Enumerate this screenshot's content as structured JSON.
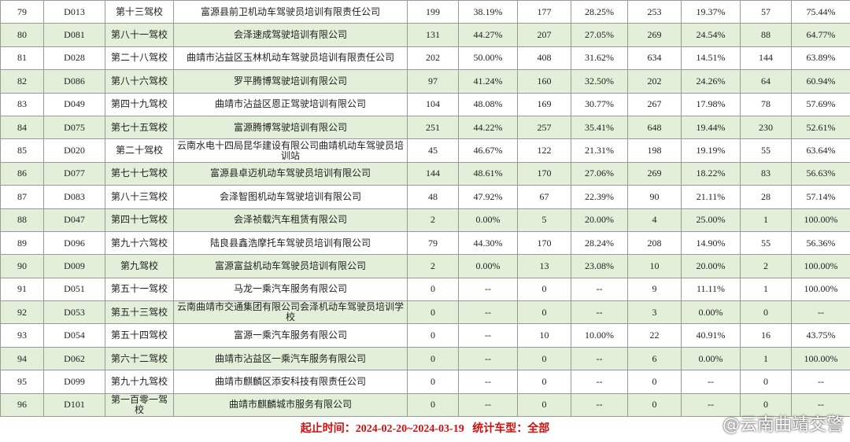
{
  "table": {
    "rows": [
      [
        "79",
        "D013",
        "第十三驾校",
        "富源县前卫机动车驾驶员培训有限责任公司",
        "199",
        "38.19%",
        "177",
        "28.25%",
        "253",
        "19.37%",
        "57",
        "75.44%"
      ],
      [
        "80",
        "D081",
        "第八十一驾校",
        "会泽速成驾驶培训有限公司",
        "131",
        "44.27%",
        "207",
        "27.05%",
        "269",
        "24.54%",
        "88",
        "64.77%"
      ],
      [
        "81",
        "D028",
        "第二十八驾校",
        "曲靖市沾益区玉林机动车驾驶员培训有限责任公司",
        "202",
        "50.00%",
        "408",
        "31.62%",
        "634",
        "14.51%",
        "144",
        "63.89%"
      ],
      [
        "82",
        "D086",
        "第八十六驾校",
        "罗平腾博驾驶培训有限公司",
        "97",
        "41.24%",
        "160",
        "32.50%",
        "202",
        "24.26%",
        "64",
        "60.94%"
      ],
      [
        "83",
        "D049",
        "第四十九驾校",
        "曲靖市沾益区恩正驾驶培训有限公司",
        "104",
        "48.08%",
        "169",
        "30.77%",
        "267",
        "17.98%",
        "78",
        "57.69%"
      ],
      [
        "84",
        "D075",
        "第七十五驾校",
        "富源腾博驾驶培训有限公司",
        "251",
        "44.22%",
        "257",
        "35.41%",
        "648",
        "19.44%",
        "230",
        "52.61%"
      ],
      [
        "85",
        "D020",
        "第二十驾校",
        "云南水电十四局昆华建设有限公司曲靖机动车驾驶员培训站",
        "45",
        "46.67%",
        "122",
        "21.31%",
        "198",
        "19.19%",
        "55",
        "63.64%"
      ],
      [
        "86",
        "D077",
        "第七十七驾校",
        "富源县卓迈机动车驾驶员培训有限公司",
        "144",
        "48.61%",
        "170",
        "27.06%",
        "269",
        "18.22%",
        "83",
        "56.63%"
      ],
      [
        "87",
        "D083",
        "第八十三驾校",
        "会泽智图机动车驾驶培训有限公司",
        "48",
        "47.92%",
        "67",
        "22.39%",
        "90",
        "21.11%",
        "28",
        "57.14%"
      ],
      [
        "88",
        "D047",
        "第四十七驾校",
        "会泽祯载汽车租赁有限公司",
        "2",
        "0.00%",
        "5",
        "20.00%",
        "4",
        "25.00%",
        "1",
        "100.00%"
      ],
      [
        "89",
        "D096",
        "第九十六驾校",
        "陆良县鑫浩摩托车驾驶员培训有限公司",
        "79",
        "44.30%",
        "170",
        "28.24%",
        "208",
        "14.90%",
        "55",
        "56.36%"
      ],
      [
        "90",
        "D009",
        "第九驾校",
        "富源富益机动车驾驶员培训有限公司",
        "2",
        "0.00%",
        "13",
        "23.08%",
        "10",
        "20.00%",
        "2",
        "100.00%"
      ],
      [
        "91",
        "D051",
        "第五十一驾校",
        "马龙一乘汽车服务有限公司",
        "0",
        "--",
        "0",
        "--",
        "9",
        "11.11%",
        "1",
        "100.00%"
      ],
      [
        "92",
        "D053",
        "第五十三驾校",
        "云南曲靖市交通集团有限公司会泽机动车驾驶员培训学校",
        "0",
        "--",
        "0",
        "--",
        "3",
        "0.00%",
        "0",
        "--"
      ],
      [
        "93",
        "D054",
        "第五十四驾校",
        "富源一乘汽车服务有限公司",
        "0",
        "--",
        "10",
        "10.00%",
        "22",
        "40.91%",
        "16",
        "43.75%"
      ],
      [
        "94",
        "D062",
        "第六十二驾校",
        "曲靖市沾益区一乘汽车服务有限公司",
        "0",
        "--",
        "0",
        "--",
        "6",
        "0.00%",
        "1",
        "100.00%"
      ],
      [
        "95",
        "D099",
        "第九十九驾校",
        "曲靖市麒麟区添安科技有限责任公司",
        "0",
        "--",
        "0",
        "--",
        "0",
        "--",
        "0",
        "--"
      ],
      [
        "96",
        "D101",
        "第一百零一驾校",
        "曲靖市麒麟城市服务有限公司",
        "0",
        "--",
        "0",
        "--",
        "0",
        "--",
        "0",
        "--"
      ]
    ]
  },
  "footer": "起止时间：2024-02-20~2024-03-19   统计车型：全部",
  "watermark": "@云南曲靖交警"
}
